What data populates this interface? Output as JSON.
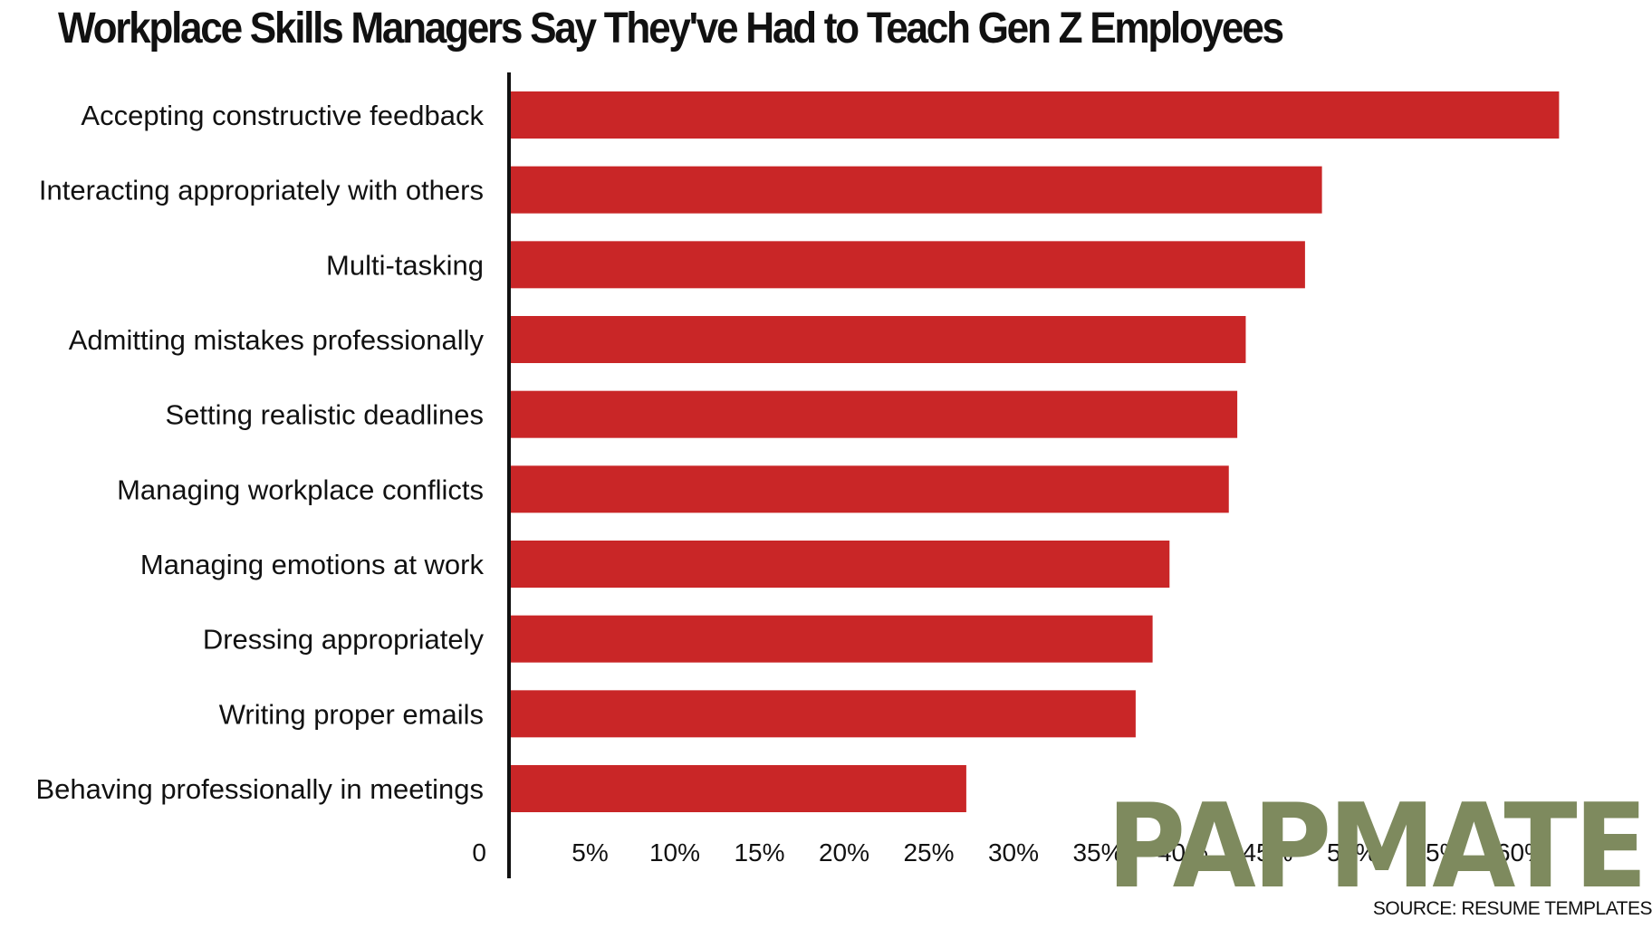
{
  "chart_data": {
    "type": "bar",
    "orientation": "horizontal",
    "title": "Workplace Skills Managers Say They've Had to Teach Gen Z Employees",
    "categories": [
      "Accepting constructive feedback",
      "Interacting appropriately with others",
      "Multi-tasking",
      "Admitting mistakes professionally",
      "Setting realistic deadlines",
      "Managing workplace conflicts",
      "Managing emotions at work",
      "Dressing appropriately",
      "Writing proper emails",
      "Behaving professionally in meetings"
    ],
    "values": [
      62,
      48,
      47,
      43.5,
      43,
      42.5,
      39,
      38,
      37,
      27
    ],
    "xlim": [
      0,
      65
    ],
    "x_ticks": [
      0,
      5,
      10,
      15,
      20,
      25,
      30,
      35,
      40,
      45,
      50,
      55,
      60
    ],
    "x_tick_labels": [
      "0",
      "5%",
      "10%",
      "15%",
      "20%",
      "25%",
      "30%",
      "35%",
      "40%",
      "45%",
      "50%",
      "55%",
      "60%"
    ],
    "grid": false,
    "legend": "none",
    "bar_color": "#c92627",
    "axis_color": "#111111"
  },
  "watermark": {
    "text": "PAPMATE",
    "color": "#7e8a5e"
  },
  "source_note": "SOURCE: RESUME TEMPLATES"
}
